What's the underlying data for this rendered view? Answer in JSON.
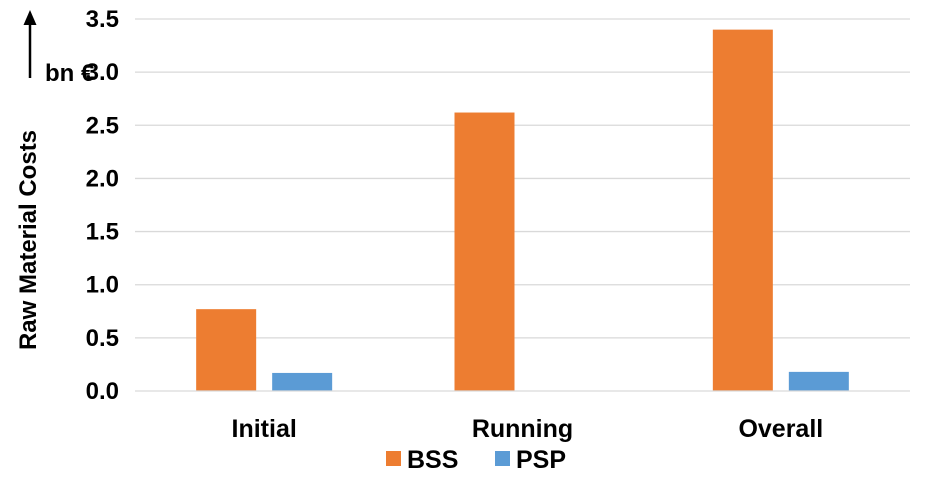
{
  "chart_data": {
    "type": "bar",
    "categories": [
      "Initial",
      "Running",
      "Overall"
    ],
    "series": [
      {
        "name": "BSS",
        "values": [
          0.77,
          2.62,
          3.4
        ],
        "color": "#ed7d31"
      },
      {
        "name": "PSP",
        "values": [
          0.17,
          0.0,
          0.18
        ],
        "color": "#5b9bd5"
      }
    ],
    "ylabel": "Raw Material Costs",
    "yunit": "bn €",
    "ylim": [
      0,
      3.5
    ],
    "yticks": [
      "0.0",
      "0.5",
      "1.0",
      "1.5",
      "2.0",
      "2.5",
      "3.0",
      "3.5"
    ],
    "grid": true,
    "legend_position": "bottom"
  }
}
